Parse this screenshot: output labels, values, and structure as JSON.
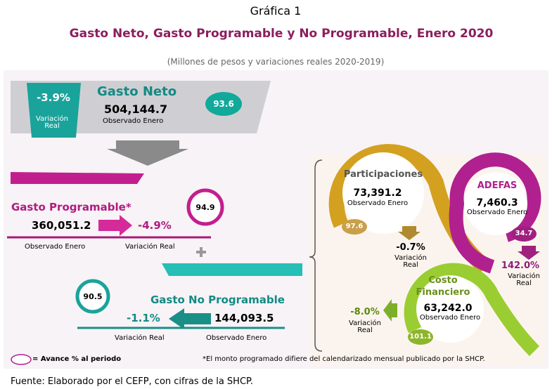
{
  "header": {
    "label": "Gráfica 1",
    "title": "Gasto Neto, Gasto Programable y No Programable, Enero 2020",
    "subtitle": "(Millones de pesos y variaciones reales 2020-2019)"
  },
  "gasto_neto": {
    "name": "Gasto Neto",
    "variation": "-3.9%",
    "variation_label": "Variación Real",
    "observed": "504,144.7",
    "observed_label": "Observado Enero",
    "progress": "93.6"
  },
  "gasto_programable": {
    "name": "Gasto Programable*",
    "observed": "360,051.2",
    "variation": "-4.9%",
    "observed_label": "Observado Enero",
    "variation_label": "Variación Real",
    "progress": "94.9"
  },
  "gasto_no_programable": {
    "name": "Gasto No Programable",
    "progress": "90.5",
    "variation": "-1.1%",
    "observed": "144,093.5",
    "variation_label": "Variación Real",
    "observed_label": "Observado Enero"
  },
  "participaciones": {
    "name": "Participaciones",
    "observed": "73,391.2",
    "observed_label": "Observado Enero",
    "progress": "97.6",
    "variation": "-0.7%",
    "variation_label": "Variación Real"
  },
  "adefas": {
    "name": "ADEFAS",
    "observed": "7,460.3",
    "observed_label": "Observado Enero",
    "progress": "34.7",
    "variation": "142.0%",
    "variation_label": "Variación Real"
  },
  "costo_financiero": {
    "name": "Costo Financiero",
    "observed": "63,242.0",
    "observed_label": "Observado Enero",
    "progress": "101.1",
    "variation": "-8.0%",
    "variation_label": "Variación Real"
  },
  "legend": "= Avance % al periodo",
  "footnote": "*El monto programado difiere del calendarizado mensual publicado por la SHCP.",
  "source": "Fuente: Elaborado por el CEFP, con cifras de la SHCP."
}
